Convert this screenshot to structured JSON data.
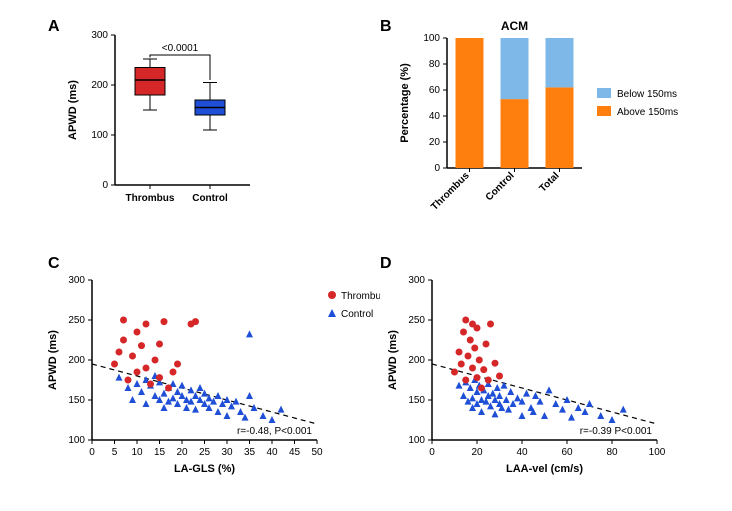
{
  "panelA": {
    "label": "A",
    "ylabel": "APWD (ms)",
    "ylim": [
      0,
      300
    ],
    "yticks": [
      0,
      100,
      200,
      300
    ],
    "p_text": "<0.0001",
    "categories": [
      "Thrombus",
      "Control"
    ],
    "boxes": [
      {
        "min": 150,
        "q1": 180,
        "median": 210,
        "q3": 235,
        "max": 252,
        "color": "#d62728"
      },
      {
        "min": 110,
        "q1": 140,
        "median": 155,
        "q3": 170,
        "max": 205,
        "color": "#1f4fd6"
      }
    ],
    "label_fontsize": 11,
    "tick_fontsize": 10
  },
  "panelB": {
    "label": "B",
    "title": "ACM",
    "ylabel": "Percentage (%)",
    "ylim": [
      0,
      100
    ],
    "yticks": [
      0,
      20,
      40,
      60,
      80,
      100
    ],
    "categories": [
      "Thrombus",
      "Control",
      "Total"
    ],
    "series": [
      {
        "name": "Below 150ms",
        "color": "#7db8e8"
      },
      {
        "name": "Above 150ms",
        "color": "#ff7f0e"
      }
    ],
    "stacks": [
      {
        "above": 100,
        "below": 0
      },
      {
        "above": 53,
        "below": 47
      },
      {
        "above": 62,
        "below": 38
      }
    ],
    "label_fontsize": 11,
    "tick_fontsize": 10
  },
  "panelC": {
    "label": "C",
    "xlabel": "LA-GLS (%)",
    "ylabel": "APWD (ms)",
    "xlim": [
      0,
      50
    ],
    "xticks": [
      0,
      5,
      10,
      15,
      20,
      25,
      30,
      35,
      40,
      45,
      50
    ],
    "ylim": [
      100,
      300
    ],
    "yticks": [
      100,
      150,
      200,
      250,
      300
    ],
    "stat_text": "r=-0.48, P<0.001",
    "line": {
      "x1": 0,
      "y1": 195,
      "x2": 50,
      "y2": 120
    },
    "series": [
      {
        "name": "Thrombus",
        "color": "#d62728",
        "marker": "circle"
      },
      {
        "name": "Control",
        "color": "#1f4fd6",
        "marker": "triangle"
      }
    ],
    "thrombus_pts": [
      [
        5,
        195
      ],
      [
        6,
        210
      ],
      [
        7,
        225
      ],
      [
        7,
        250
      ],
      [
        8,
        175
      ],
      [
        9,
        205
      ],
      [
        10,
        185
      ],
      [
        10,
        235
      ],
      [
        11,
        218
      ],
      [
        12,
        190
      ],
      [
        12,
        245
      ],
      [
        13,
        170
      ],
      [
        14,
        200
      ],
      [
        15,
        178
      ],
      [
        15,
        220
      ],
      [
        16,
        248
      ],
      [
        17,
        165
      ],
      [
        18,
        185
      ],
      [
        19,
        195
      ],
      [
        22,
        245
      ],
      [
        23,
        248
      ]
    ],
    "control_pts": [
      [
        6,
        178
      ],
      [
        8,
        165
      ],
      [
        9,
        150
      ],
      [
        10,
        170
      ],
      [
        11,
        160
      ],
      [
        12,
        145
      ],
      [
        12,
        175
      ],
      [
        13,
        168
      ],
      [
        14,
        155
      ],
      [
        14,
        180
      ],
      [
        15,
        150
      ],
      [
        15,
        172
      ],
      [
        16,
        158
      ],
      [
        16,
        140
      ],
      [
        17,
        165
      ],
      [
        17,
        148
      ],
      [
        18,
        152
      ],
      [
        18,
        170
      ],
      [
        19,
        160
      ],
      [
        19,
        145
      ],
      [
        20,
        155
      ],
      [
        20,
        168
      ],
      [
        21,
        150
      ],
      [
        21,
        140
      ],
      [
        22,
        162
      ],
      [
        22,
        148
      ],
      [
        23,
        155
      ],
      [
        23,
        138
      ],
      [
        24,
        165
      ],
      [
        24,
        150
      ],
      [
        25,
        145
      ],
      [
        25,
        158
      ],
      [
        26,
        140
      ],
      [
        26,
        152
      ],
      [
        27,
        148
      ],
      [
        28,
        155
      ],
      [
        28,
        135
      ],
      [
        29,
        145
      ],
      [
        30,
        150
      ],
      [
        30,
        130
      ],
      [
        31,
        142
      ],
      [
        32,
        148
      ],
      [
        33,
        135
      ],
      [
        34,
        128
      ],
      [
        35,
        155
      ],
      [
        35,
        232
      ],
      [
        36,
        140
      ],
      [
        38,
        130
      ],
      [
        40,
        125
      ],
      [
        42,
        138
      ]
    ]
  },
  "panelD": {
    "label": "D",
    "xlabel": "LAA-vel (cm/s)",
    "ylabel": "APWD (ms)",
    "xlim": [
      0,
      100
    ],
    "xticks": [
      0,
      20,
      40,
      60,
      80,
      100
    ],
    "ylim": [
      100,
      300
    ],
    "yticks": [
      100,
      150,
      200,
      250,
      300
    ],
    "stat_text": "r=-0.39 P<0.001",
    "line": {
      "x1": 0,
      "y1": 195,
      "x2": 100,
      "y2": 120
    },
    "thrombus_pts": [
      [
        10,
        185
      ],
      [
        12,
        210
      ],
      [
        13,
        195
      ],
      [
        14,
        235
      ],
      [
        15,
        175
      ],
      [
        15,
        250
      ],
      [
        16,
        205
      ],
      [
        17,
        225
      ],
      [
        18,
        190
      ],
      [
        18,
        245
      ],
      [
        19,
        215
      ],
      [
        20,
        178
      ],
      [
        20,
        240
      ],
      [
        21,
        200
      ],
      [
        22,
        165
      ],
      [
        23,
        188
      ],
      [
        24,
        220
      ],
      [
        25,
        175
      ],
      [
        26,
        245
      ],
      [
        28,
        196
      ],
      [
        30,
        180
      ]
    ],
    "control_pts": [
      [
        12,
        168
      ],
      [
        14,
        155
      ],
      [
        15,
        172
      ],
      [
        16,
        148
      ],
      [
        17,
        165
      ],
      [
        18,
        152
      ],
      [
        18,
        140
      ],
      [
        19,
        175
      ],
      [
        20,
        160
      ],
      [
        20,
        145
      ],
      [
        21,
        168
      ],
      [
        22,
        150
      ],
      [
        22,
        135
      ],
      [
        23,
        162
      ],
      [
        24,
        148
      ],
      [
        25,
        155
      ],
      [
        25,
        170
      ],
      [
        26,
        142
      ],
      [
        27,
        158
      ],
      [
        28,
        150
      ],
      [
        28,
        132
      ],
      [
        29,
        165
      ],
      [
        30,
        145
      ],
      [
        30,
        155
      ],
      [
        31,
        140
      ],
      [
        32,
        168
      ],
      [
        33,
        150
      ],
      [
        34,
        138
      ],
      [
        35,
        160
      ],
      [
        36,
        145
      ],
      [
        38,
        152
      ],
      [
        40,
        148
      ],
      [
        40,
        130
      ],
      [
        42,
        158
      ],
      [
        44,
        140
      ],
      [
        45,
        135
      ],
      [
        46,
        155
      ],
      [
        48,
        148
      ],
      [
        50,
        130
      ],
      [
        52,
        162
      ],
      [
        55,
        145
      ],
      [
        58,
        138
      ],
      [
        60,
        150
      ],
      [
        62,
        128
      ],
      [
        65,
        140
      ],
      [
        68,
        135
      ],
      [
        70,
        145
      ],
      [
        75,
        130
      ],
      [
        80,
        125
      ],
      [
        85,
        138
      ]
    ]
  },
  "colors": {
    "thrombus": "#d62728",
    "control": "#1f4fd6",
    "below": "#7db8e8",
    "above": "#ff7f0e",
    "axis": "#000000"
  }
}
